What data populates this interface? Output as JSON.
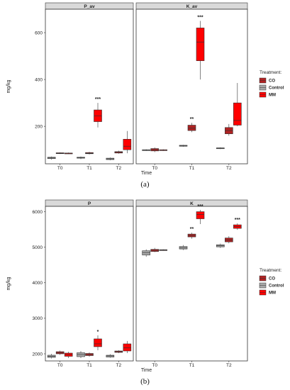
{
  "colors": {
    "CO": "#b22222",
    "Control": "#a9a9a9",
    "MM": "#ff0000",
    "strip": "#d9d9d9",
    "axis": "#333333"
  },
  "captions": [
    "(a)",
    "(b)"
  ],
  "chart_data": [
    {
      "type": "boxplot",
      "ylabel": "mg/kg",
      "xlabel": "Time",
      "categories": [
        "T0",
        "T1",
        "T2"
      ],
      "ylim": [
        40,
        700
      ],
      "yticks": [
        200,
        400,
        600
      ],
      "legend": {
        "title": "Treatment:",
        "entries": [
          "CO",
          "Control",
          "MM"
        ],
        "placement": "right"
      },
      "panels": [
        {
          "name": "P_av",
          "boxes": [
            {
              "category": "T0",
              "series": "Control",
              "min": 58,
              "q1": 62,
              "median": 65,
              "q3": 68,
              "max": 71
            },
            {
              "category": "T0",
              "series": "CO",
              "min": 82,
              "q1": 84,
              "median": 85,
              "q3": 87,
              "max": 89
            },
            {
              "category": "T0",
              "series": "MM",
              "min": 82,
              "q1": 84,
              "median": 85,
              "q3": 86,
              "max": 88
            },
            {
              "category": "T1",
              "series": "Control",
              "min": 60,
              "q1": 64,
              "median": 66,
              "q3": 68,
              "max": 71
            },
            {
              "category": "T1",
              "series": "CO",
              "min": 80,
              "q1": 83,
              "median": 85,
              "q3": 88,
              "max": 91
            },
            {
              "category": "T1",
              "series": "MM",
              "min": 195,
              "q1": 220,
              "median": 245,
              "q3": 270,
              "max": 300,
              "sig": "***"
            },
            {
              "category": "T2",
              "series": "Control",
              "min": 55,
              "q1": 58,
              "median": 61,
              "q3": 64,
              "max": 67
            },
            {
              "category": "T2",
              "series": "CO",
              "min": 83,
              "q1": 86,
              "median": 89,
              "q3": 92,
              "max": 96
            },
            {
              "category": "T2",
              "series": "MM",
              "min": 85,
              "q1": 100,
              "median": 115,
              "q3": 145,
              "max": 180
            }
          ]
        },
        {
          "name": "K_av",
          "boxes": [
            {
              "category": "T0",
              "series": "Control",
              "min": 95,
              "q1": 97,
              "median": 99,
              "q3": 100,
              "max": 102
            },
            {
              "category": "T0",
              "series": "CO",
              "min": 90,
              "q1": 95,
              "median": 100,
              "q3": 105,
              "max": 110
            },
            {
              "category": "T0",
              "series": "MM",
              "min": 95,
              "q1": 97,
              "median": 99,
              "q3": 100,
              "max": 102
            },
            {
              "category": "T1",
              "series": "Control",
              "min": 113,
              "q1": 115,
              "median": 117,
              "q3": 119,
              "max": 121
            },
            {
              "category": "T1",
              "series": "CO",
              "min": 175,
              "q1": 182,
              "median": 192,
              "q3": 205,
              "max": 215,
              "sig": "**"
            },
            {
              "category": "T1",
              "series": "MM",
              "min": 400,
              "q1": 480,
              "median": 560,
              "q3": 620,
              "max": 650,
              "sig": "***"
            },
            {
              "category": "T2",
              "series": "Control",
              "min": 103,
              "q1": 105,
              "median": 107,
              "q3": 108,
              "max": 110
            },
            {
              "category": "T2",
              "series": "CO",
              "min": 160,
              "q1": 168,
              "median": 182,
              "q3": 195,
              "max": 210
            },
            {
              "category": "T2",
              "series": "MM",
              "min": 200,
              "q1": 205,
              "median": 225,
              "q3": 300,
              "max": 385
            }
          ]
        }
      ]
    },
    {
      "type": "boxplot",
      "ylabel": "mg/kg",
      "xlabel": "Time",
      "categories": [
        "T0",
        "T1",
        "T2"
      ],
      "ylim": [
        1800,
        6150
      ],
      "yticks": [
        2000,
        3000,
        4000,
        5000,
        6000
      ],
      "legend": {
        "title": "Treatment:",
        "entries": [
          "CO",
          "Control",
          "MM"
        ],
        "placement": "right"
      },
      "panels": [
        {
          "name": "P",
          "boxes": [
            {
              "category": "T0",
              "series": "Control",
              "min": 1870,
              "q1": 1900,
              "median": 1930,
              "q3": 1960,
              "max": 2000
            },
            {
              "category": "T0",
              "series": "CO",
              "min": 1970,
              "q1": 2000,
              "median": 2030,
              "q3": 2060,
              "max": 2090
            },
            {
              "category": "T0",
              "series": "MM",
              "min": 1880,
              "q1": 1930,
              "median": 1980,
              "q3": 2020,
              "max": 2060
            },
            {
              "category": "T1",
              "series": "Control",
              "min": 1880,
              "q1": 1920,
              "median": 1980,
              "q3": 2030,
              "max": 2080
            },
            {
              "category": "T1",
              "series": "CO",
              "min": 1920,
              "q1": 1950,
              "median": 1980,
              "q3": 2010,
              "max": 2040
            },
            {
              "category": "T1",
              "series": "MM",
              "min": 2100,
              "q1": 2200,
              "median": 2280,
              "q3": 2420,
              "max": 2520,
              "sig": "*"
            },
            {
              "category": "T2",
              "series": "Control",
              "min": 1890,
              "q1": 1910,
              "median": 1940,
              "q3": 1960,
              "max": 1990
            },
            {
              "category": "T2",
              "series": "CO",
              "min": 2020,
              "q1": 2040,
              "median": 2060,
              "q3": 2080,
              "max": 2100
            },
            {
              "category": "T2",
              "series": "MM",
              "min": 2020,
              "q1": 2080,
              "median": 2170,
              "q3": 2280,
              "max": 2360
            }
          ]
        },
        {
          "name": "K",
          "boxes": [
            {
              "category": "T0",
              "series": "Control",
              "min": 4730,
              "q1": 4780,
              "median": 4850,
              "q3": 4900,
              "max": 4940
            },
            {
              "category": "T0",
              "series": "CO",
              "min": 4860,
              "q1": 4880,
              "median": 4910,
              "q3": 4940,
              "max": 4980
            },
            {
              "category": "T0",
              "series": "MM",
              "min": 4900,
              "q1": 4910,
              "median": 4920,
              "q3": 4930,
              "max": 4940
            },
            {
              "category": "T1",
              "series": "Control",
              "min": 4920,
              "q1": 4950,
              "median": 4980,
              "q3": 5020,
              "max": 5060
            },
            {
              "category": "T1",
              "series": "CO",
              "min": 5240,
              "q1": 5290,
              "median": 5330,
              "q3": 5370,
              "max": 5410,
              "sig": "**"
            },
            {
              "category": "T1",
              "series": "MM",
              "min": 5650,
              "q1": 5800,
              "median": 5920,
              "q3": 6000,
              "max": 6050,
              "sig": "***"
            },
            {
              "category": "T2",
              "series": "Control",
              "min": 4980,
              "q1": 5010,
              "median": 5040,
              "q3": 5070,
              "max": 5100
            },
            {
              "category": "T2",
              "series": "CO",
              "min": 5110,
              "q1": 5150,
              "median": 5200,
              "q3": 5260,
              "max": 5310
            },
            {
              "category": "T2",
              "series": "MM",
              "min": 5490,
              "q1": 5530,
              "median": 5580,
              "q3": 5630,
              "max": 5670,
              "sig": "***"
            }
          ]
        }
      ]
    }
  ]
}
